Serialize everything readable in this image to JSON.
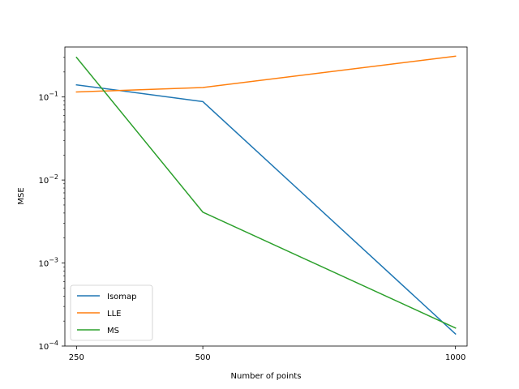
{
  "chart_data": {
    "type": "line",
    "title": "",
    "xlabel": "Number of points",
    "ylabel": "MSE",
    "x": [
      250,
      500,
      1000
    ],
    "x_ticks": [
      "250",
      "500",
      "1000"
    ],
    "xlim": [
      227,
      1023
    ],
    "ylim": [
      0.0001,
      0.4
    ],
    "y_scale": "log",
    "y_ticks": [
      {
        "value": 0.0001,
        "base": "10",
        "exp": "−4"
      },
      {
        "value": 0.001,
        "base": "10",
        "exp": "−3"
      },
      {
        "value": 0.01,
        "base": "10",
        "exp": "−2"
      },
      {
        "value": 0.1,
        "base": "10",
        "exp": "−1"
      }
    ],
    "grid": false,
    "legend": "bottom-left",
    "series": [
      {
        "name": "Isomap",
        "color": "#1f77b4",
        "values": [
          0.14,
          0.088,
          0.00014
        ]
      },
      {
        "name": "LLE",
        "color": "#ff7f0e",
        "values": [
          0.115,
          0.13,
          0.31
        ]
      },
      {
        "name": "MS",
        "color": "#2ca02c",
        "values": [
          0.3,
          0.0041,
          0.000165
        ]
      }
    ]
  }
}
